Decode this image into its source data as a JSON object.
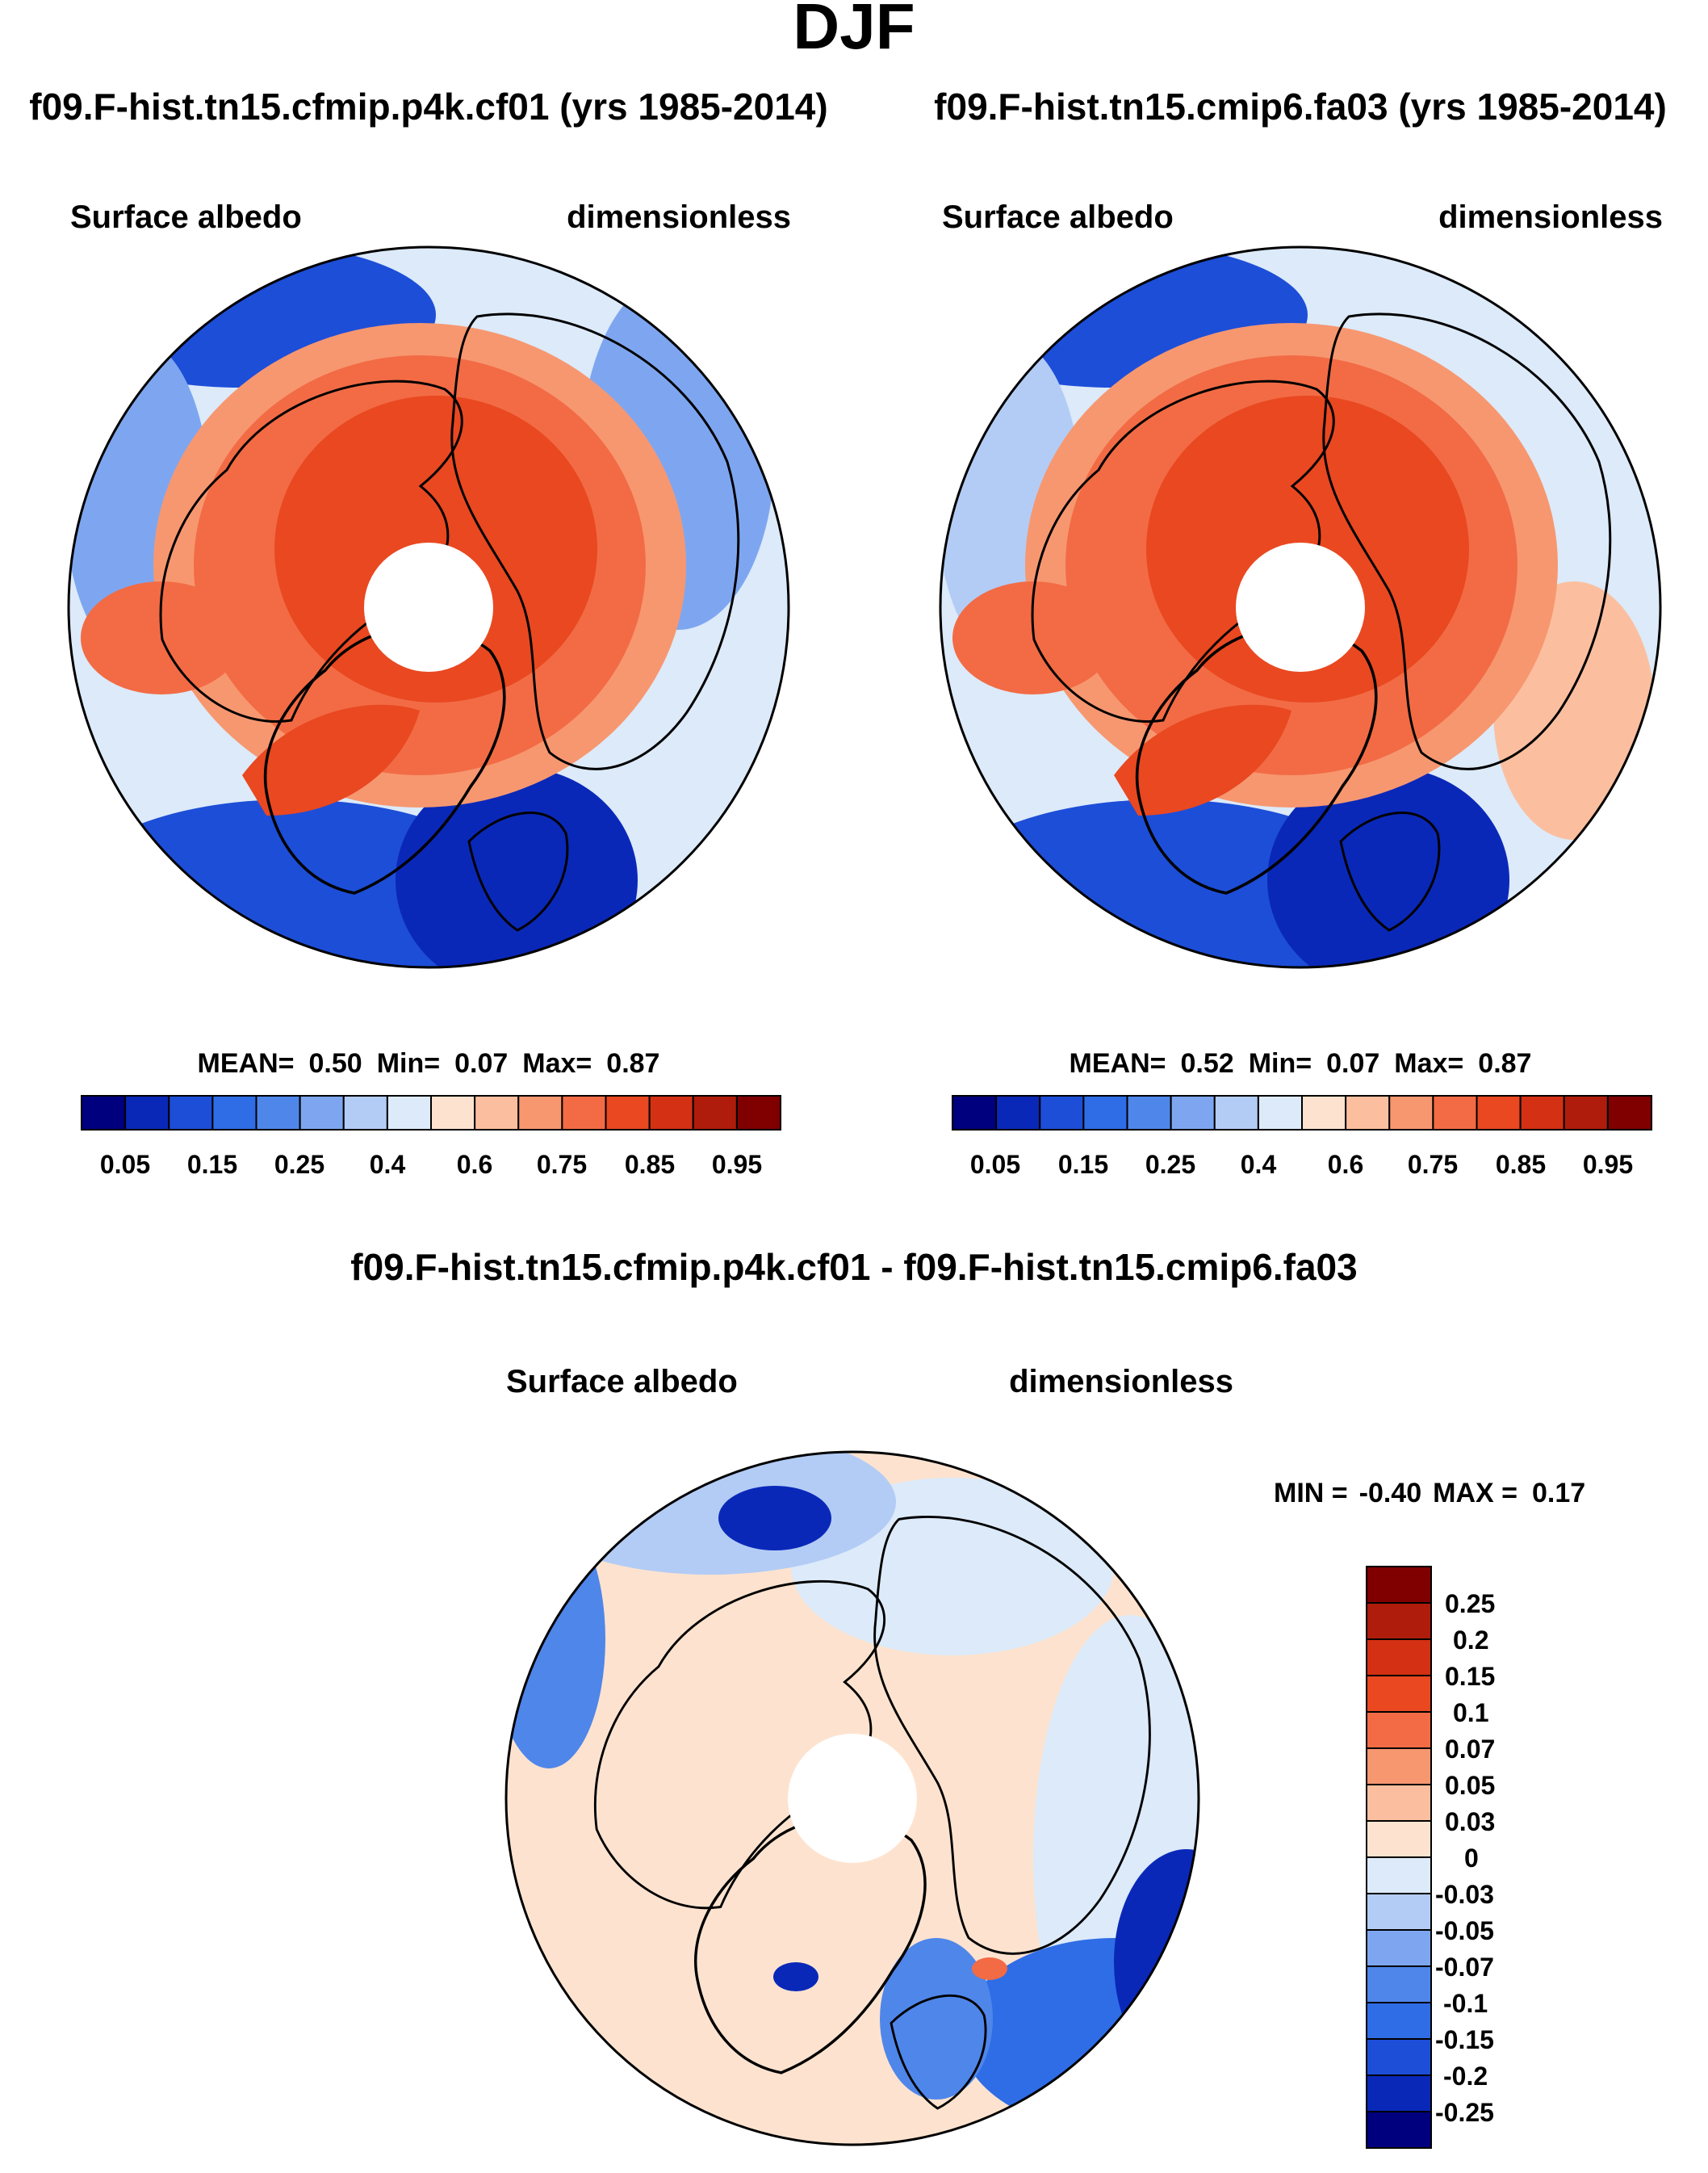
{
  "figure": {
    "title": "DJF",
    "difference_title": "f09.F-hist.tn15.cfmip.p4k.cf01 - f09.F-hist.tn15.cmip6.fa03"
  },
  "palettes": {
    "abs": [
      "#00007f",
      "#0a28b8",
      "#1d4ed8",
      "#2f6de6",
      "#4f86ea",
      "#7ea6f0",
      "#b3ccf5",
      "#dceaf9",
      "#fde3cf",
      "#fbbf9f",
      "#f79770",
      "#f26b45",
      "#e94821",
      "#d43014",
      "#b01c0b",
      "#800000"
    ],
    "diff": [
      "#00007f",
      "#0a28b8",
      "#1d4ed8",
      "#2f6de6",
      "#4f86ea",
      "#7ea6f0",
      "#b3ccf5",
      "#dceaf9",
      "#fde3cf",
      "#fbbf9f",
      "#f79770",
      "#f26b45",
      "#e94821",
      "#d43014",
      "#b01c0b",
      "#800000"
    ],
    "land_outline": "#000000"
  },
  "chart_data": [
    {
      "type": "heatmap",
      "projection": "north-polar-stereographic",
      "title": "f09.F-hist.tn15.cfmip.p4k.cf01 (yrs 1985-2014)",
      "left_label": "Surface albedo",
      "right_label": "dimensionless",
      "stats": {
        "mean_label": "MEAN=",
        "mean": "0.50",
        "min_label": "Min=",
        "min": "0.07",
        "max_label": "Max=",
        "max": "0.87"
      },
      "colorbar": {
        "orientation": "horizontal",
        "levels": [
          0.05,
          0.1,
          0.15,
          0.2,
          0.25,
          0.3,
          0.4,
          0.5,
          0.6,
          0.7,
          0.75,
          0.8,
          0.85,
          0.9,
          0.95
        ],
        "tick_labels": [
          "0.05",
          "0.15",
          "0.25",
          "0.4",
          "0.6",
          "0.75",
          "0.85",
          "0.95"
        ]
      }
    },
    {
      "type": "heatmap",
      "projection": "north-polar-stereographic",
      "title": "f09.F-hist.tn15.cmip6.fa03 (yrs 1985-2014)",
      "left_label": "Surface albedo",
      "right_label": "dimensionless",
      "stats": {
        "mean_label": "MEAN=",
        "mean": "0.52",
        "min_label": "Min=",
        "min": "0.07",
        "max_label": "Max=",
        "max": "0.87"
      },
      "colorbar": {
        "orientation": "horizontal",
        "levels": [
          0.05,
          0.1,
          0.15,
          0.2,
          0.25,
          0.3,
          0.4,
          0.5,
          0.6,
          0.7,
          0.75,
          0.8,
          0.85,
          0.9,
          0.95
        ],
        "tick_labels": [
          "0.05",
          "0.15",
          "0.25",
          "0.4",
          "0.6",
          "0.75",
          "0.85",
          "0.95"
        ]
      }
    },
    {
      "type": "heatmap",
      "projection": "north-polar-stereographic",
      "title": "f09.F-hist.tn15.cfmip.p4k.cf01 - f09.F-hist.tn15.cmip6.fa03",
      "left_label": "Surface albedo",
      "right_label": "dimensionless",
      "stats": {
        "min_label": "MIN =",
        "min": "-0.40",
        "max_label": "MAX =",
        "max": "0.17"
      },
      "colorbar": {
        "orientation": "vertical",
        "levels": [
          -0.25,
          -0.2,
          -0.15,
          -0.1,
          -0.07,
          -0.05,
          -0.03,
          0,
          0.03,
          0.05,
          0.07,
          0.1,
          0.15,
          0.2,
          0.25
        ],
        "tick_labels": [
          "0.25",
          "0.2",
          "0.15",
          "0.1",
          "0.07",
          "0.05",
          "0.03",
          "0",
          "-0.03",
          "-0.05",
          "-0.07",
          "-0.1",
          "-0.15",
          "-0.2",
          "-0.25"
        ]
      }
    }
  ]
}
